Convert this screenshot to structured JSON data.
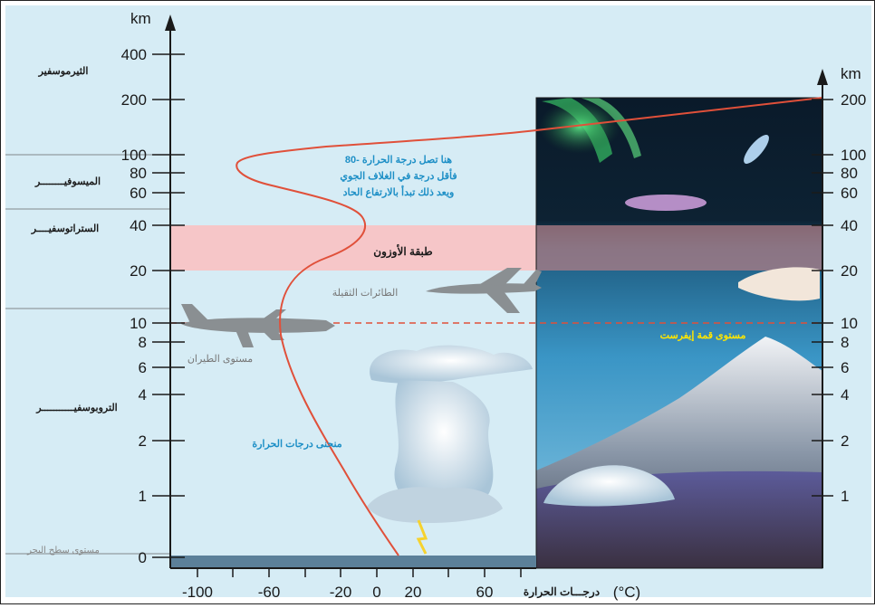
{
  "left_axis": {
    "unit": "km",
    "ticks": [
      "400",
      "200",
      "100",
      "80",
      "60",
      "40",
      "20",
      "10",
      "8",
      "6",
      "4",
      "2",
      "1",
      "0"
    ]
  },
  "right_axis": {
    "unit": "km",
    "ticks": [
      "200",
      "100",
      "80",
      "60",
      "40",
      "20",
      "10",
      "8",
      "6",
      "4",
      "2",
      "1"
    ]
  },
  "bottom_axis": {
    "ticks": [
      "-100",
      "-60",
      "-20",
      "0",
      "20",
      "60"
    ],
    "label": "درجـــات الحرارة",
    "unit": "(°C)"
  },
  "layers": {
    "thermosphere": "الثيرموسفير",
    "mesosphere": "الميسوفيــــــــر",
    "stratosphere": "الستراتوسفيــــر",
    "troposphere": "التروبوسفيـــــــــــر",
    "sea_level": "مستوى سطح البحر"
  },
  "ozone_label": "طبقة الأوزون",
  "mesopause_note": {
    "line1": "هنا تصل درجة الحرارة -80",
    "line2": "فأقل درجة في الغلاف الجوي",
    "line3": "ويعد ذلك تبدأ بالارتفاع الحاد"
  },
  "heavy_aircraft_label": "الطائرات الثقيلة",
  "flight_level_label": "مستوى الطيران",
  "temperature_curve_label": "منحنى درجات الحرارة",
  "everest_label": "مستوى قمة إيفرست",
  "colors": {
    "sky": "#d6ecf5",
    "ozone": "#f6c6c8",
    "curve": "#e0503a",
    "note_text": "#1d8fc6",
    "everest_text": "#ffe600"
  }
}
